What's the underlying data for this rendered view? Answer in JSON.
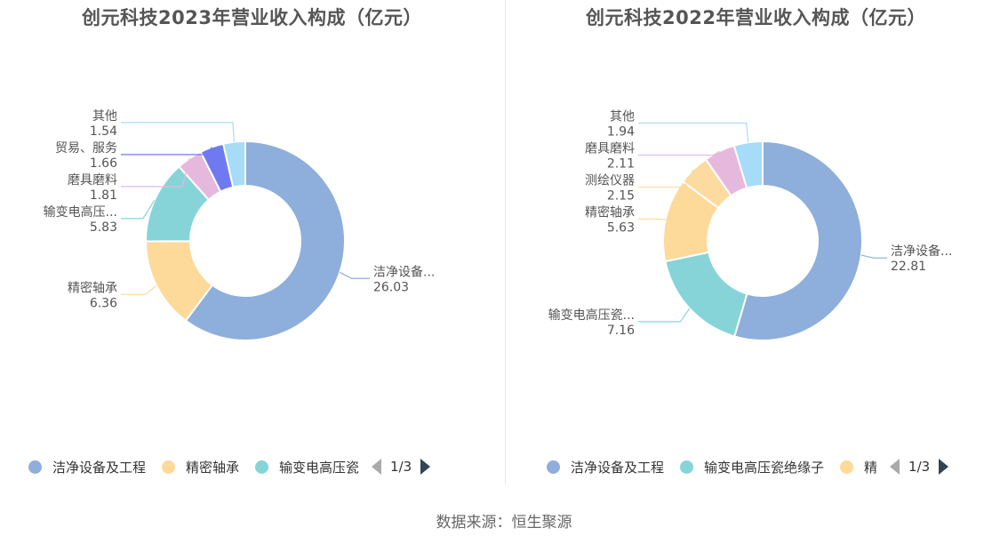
{
  "source": "数据来源：恒生聚源",
  "chart_data": [
    {
      "type": "pie",
      "title": "创元科技2023年营业收入构成（亿元）",
      "slices": [
        {
          "label": "洁净设备...",
          "value": 26.03,
          "color": "#8eaedb"
        },
        {
          "label": "精密轴承",
          "value": 6.36,
          "color": "#fdd99a"
        },
        {
          "label": "输变电高压...",
          "value": 5.83,
          "color": "#86d4d8"
        },
        {
          "label": "磨具磨料",
          "value": 1.81,
          "color": "#e7b8de"
        },
        {
          "label": "贸易、服务",
          "value": 1.66,
          "color": "#6f7af0"
        },
        {
          "label": "其他",
          "value": 1.54,
          "color": "#a6dcf7"
        }
      ],
      "legend": {
        "items": [
          {
            "label": "洁净设备及工程",
            "color": "#8eaedb"
          },
          {
            "label": "精密轴承",
            "color": "#fdd99a"
          },
          {
            "label": "输变电高压瓷",
            "color": "#86d4d8"
          }
        ],
        "page": "1/3",
        "position": "bottom"
      }
    },
    {
      "type": "pie",
      "title": "创元科技2022年营业收入构成（亿元）",
      "slices": [
        {
          "label": "洁净设备...",
          "value": 22.81,
          "color": "#8eaedb"
        },
        {
          "label": "输变电高压瓷...",
          "value": 7.16,
          "color": "#86d4d8"
        },
        {
          "label": "精密轴承",
          "value": 5.63,
          "color": "#fdd99a"
        },
        {
          "label": "测绘仪器",
          "value": 2.15,
          "color": "#fddba0"
        },
        {
          "label": "磨具磨料",
          "value": 2.11,
          "color": "#e7b8de"
        },
        {
          "label": "其他",
          "value": 1.94,
          "color": "#a6dcf7"
        }
      ],
      "legend": {
        "items": [
          {
            "label": "洁净设备及工程",
            "color": "#8eaedb"
          },
          {
            "label": "输变电高压瓷绝缘子",
            "color": "#86d4d8"
          },
          {
            "label": "精",
            "color": "#fdd99a"
          }
        ],
        "page": "1/3",
        "position": "bottom"
      }
    }
  ]
}
